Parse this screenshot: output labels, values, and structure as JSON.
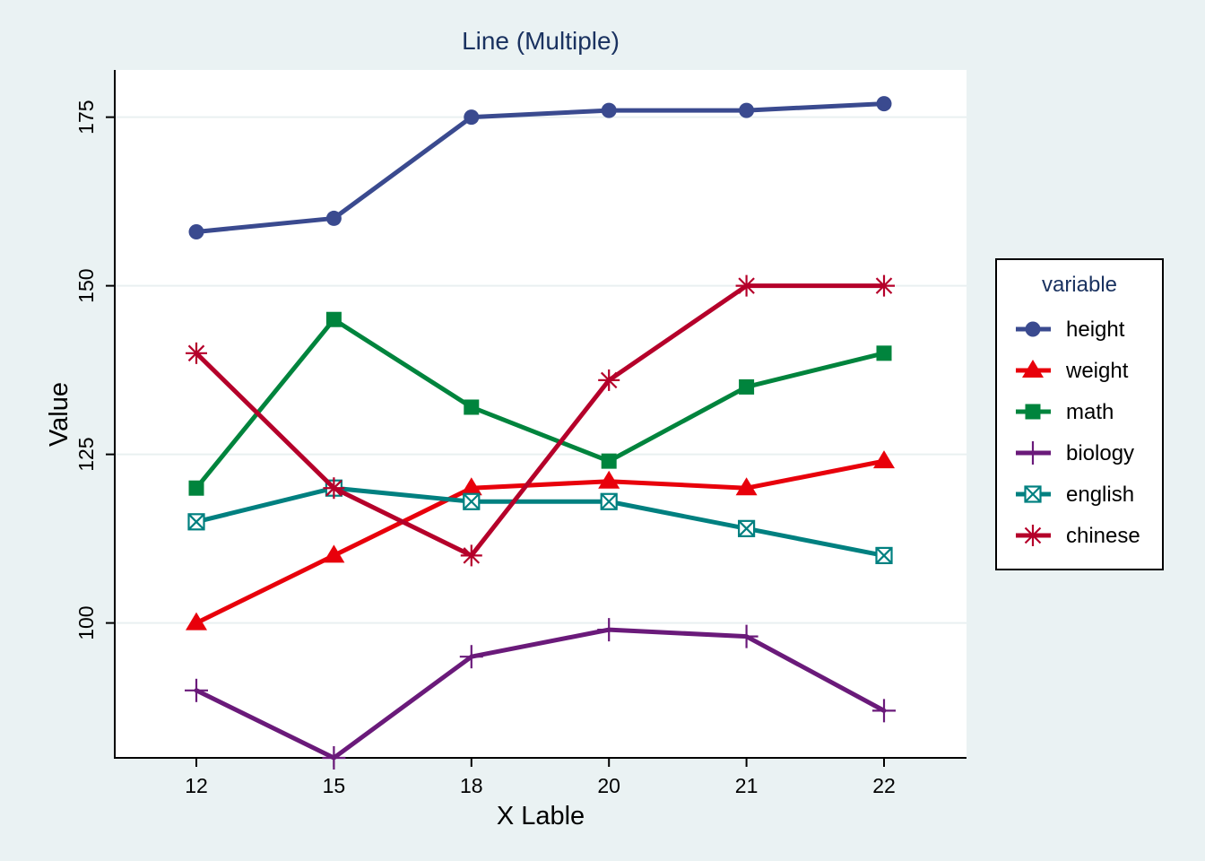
{
  "chart_data": {
    "type": "line",
    "title": "Line (Multiple)",
    "xlabel": "X Lable",
    "ylabel": "Value",
    "categories": [
      "12",
      "15",
      "18",
      "20",
      "21",
      "22"
    ],
    "ylim": [
      80,
      182
    ],
    "yticks": [
      100,
      125,
      150,
      175
    ],
    "grid": "horizontal",
    "legend": {
      "title": "variable",
      "position": "right"
    },
    "series": [
      {
        "name": "height",
        "color": "#3a4a8f",
        "marker": "circle",
        "values": [
          158,
          160,
          175,
          176,
          176,
          177
        ]
      },
      {
        "name": "weight",
        "color": "#e8000b",
        "marker": "triangle",
        "values": [
          100,
          110,
          120,
          121,
          120,
          124
        ]
      },
      {
        "name": "math",
        "color": "#00843d",
        "marker": "square",
        "values": [
          120,
          145,
          132,
          124,
          135,
          140
        ]
      },
      {
        "name": "biology",
        "color": "#6a1a7a",
        "marker": "plus",
        "values": [
          90,
          80,
          95,
          99,
          98,
          87
        ]
      },
      {
        "name": "english",
        "color": "#008080",
        "marker": "boxx",
        "values": [
          115,
          120,
          118,
          118,
          114,
          110
        ]
      },
      {
        "name": "chinese",
        "color": "#b5002a",
        "marker": "asterisk",
        "values": [
          140,
          120,
          110,
          136,
          150,
          150
        ]
      }
    ]
  }
}
